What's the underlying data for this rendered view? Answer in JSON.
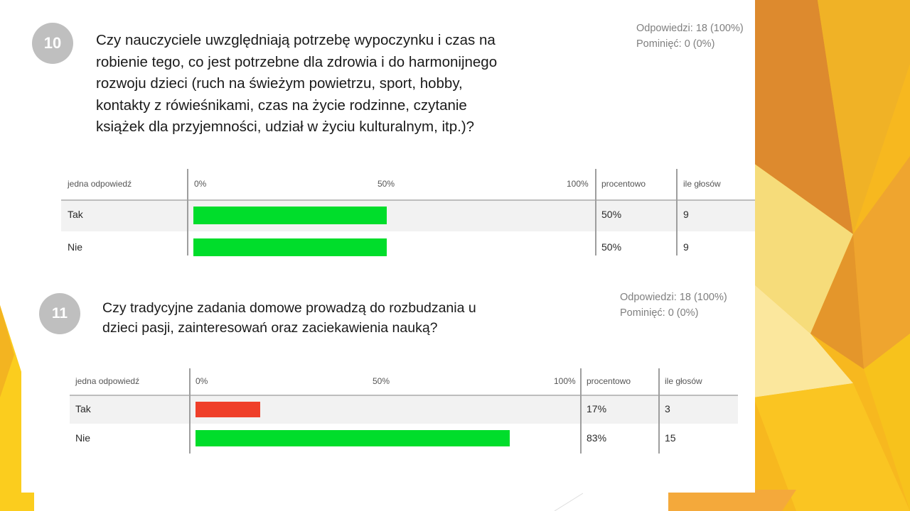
{
  "colors": {
    "bar_yes_q10": "#00dd2b",
    "bar_no_q10": "#00dd2b",
    "bar_yes_q11": "#ef3f2a",
    "bar_no_q11": "#00dd2b",
    "accent": "#f2c11b"
  },
  "questions": [
    {
      "number": "10",
      "text_lines": [
        "Czy nauczyciele uwzględniają potrzebę wypoczynku i czas na",
        "robienie tego, co jest potrzebne dla zdrowia i do harmonijnego",
        "rozwoju dzieci (ruch na świeżym powietrzu, sport, hobby,",
        "kontakty z rówieśnikami, czas na życie rodzinne, czytanie",
        "książek dla przyjemności, udział w życiu kulturalnym, itp.)?"
      ],
      "answered": "Odpowiedzi: 18 (100%)",
      "skipped": "Pominięć: 0 (0%)",
      "table": {
        "h_answer": "jedna odpowiedź",
        "h_0": "0%",
        "h_50": "50%",
        "h_100": "100%",
        "h_percent": "procentowo",
        "h_votes": "ile głosów",
        "rows": [
          {
            "label": "Tak",
            "percent": "50%",
            "votes": "9"
          },
          {
            "label": "Nie",
            "percent": "50%",
            "votes": "9"
          }
        ]
      }
    },
    {
      "number": "11",
      "text_lines": [
        "Czy tradycyjne zadania domowe prowadzą do rozbudzania u",
        "dzieci pasji, zainteresowań oraz zaciekawienia nauką?"
      ],
      "answered": "Odpowiedzi: 18 (100%)",
      "skipped": "Pominięć: 0 (0%)",
      "table": {
        "h_answer": "jedna odpowiedź",
        "h_0": "0%",
        "h_50": "50%",
        "h_100": "100%",
        "h_percent": "procentowo",
        "h_votes": "ile głosów",
        "rows": [
          {
            "label": "Tak",
            "percent": "17%",
            "votes": "3"
          },
          {
            "label": "Nie",
            "percent": "83%",
            "votes": "15"
          }
        ]
      }
    }
  ],
  "chart_data": [
    {
      "type": "bar",
      "orientation": "horizontal",
      "categories": [
        "Tak",
        "Nie"
      ],
      "values": [
        50,
        50
      ],
      "xlim": [
        0,
        100
      ],
      "xticks": [
        "0%",
        "50%",
        "100%"
      ]
    },
    {
      "type": "bar",
      "orientation": "horizontal",
      "categories": [
        "Tak",
        "Nie"
      ],
      "values": [
        17,
        83
      ],
      "xlim": [
        0,
        100
      ],
      "xticks": [
        "0%",
        "50%",
        "100%"
      ]
    }
  ]
}
